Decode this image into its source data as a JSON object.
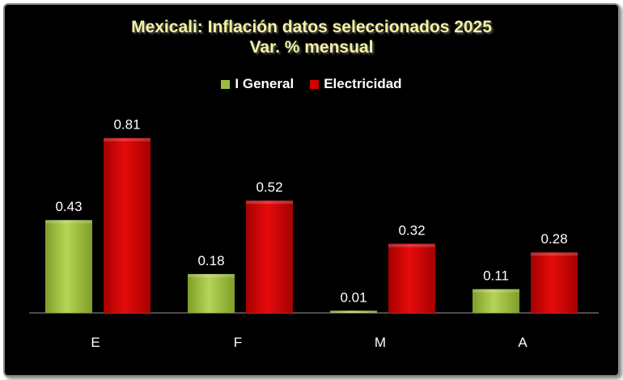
{
  "chart_data": {
    "type": "bar",
    "title": "Mexicali: Inflación datos seleccionados 2025",
    "subtitle": "Var. % mensual",
    "categories": [
      "E",
      "F",
      "M",
      "A"
    ],
    "series": [
      {
        "name": "I General",
        "values": [
          0.43,
          0.18,
          0.01,
          0.11
        ],
        "color": "#9bbb3c"
      },
      {
        "name": "Electricidad",
        "values": [
          0.81,
          0.52,
          0.32,
          0.28
        ],
        "color": "#d40000"
      }
    ],
    "value_labels": {
      "I General": [
        "0.43",
        "0.18",
        "0.01",
        "0.11"
      ],
      "Electricidad": [
        "0.81",
        "0.52",
        "0.32",
        "0.28"
      ]
    },
    "ylim": [
      0,
      1.0
    ],
    "grid": false,
    "legend_position": "top"
  }
}
